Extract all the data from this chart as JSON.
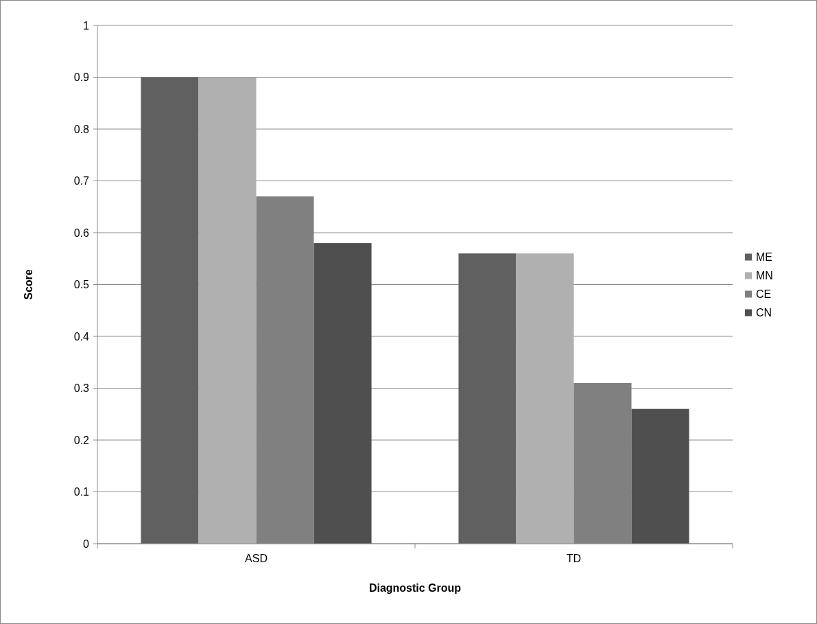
{
  "chart_data": {
    "type": "bar",
    "xlabel": "Diagnostic Group",
    "ylabel": "Score",
    "categories": [
      "ASD",
      "TD"
    ],
    "series": [
      {
        "name": "ME",
        "color": "#606060",
        "values": [
          0.9,
          0.56
        ]
      },
      {
        "name": "MN",
        "color": "#b0b0b0",
        "values": [
          0.9,
          0.56
        ]
      },
      {
        "name": "CE",
        "color": "#808080",
        "values": [
          0.67,
          0.31
        ]
      },
      {
        "name": "CN",
        "color": "#4f4f4f",
        "values": [
          0.58,
          0.26
        ]
      }
    ],
    "ylim": [
      0,
      1
    ],
    "yticks": [
      0,
      0.1,
      0.2,
      0.3,
      0.4,
      0.5,
      0.6,
      0.7,
      0.8,
      0.9,
      1
    ],
    "grid": "y",
    "legend": "right"
  }
}
